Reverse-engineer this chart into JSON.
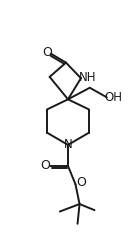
{
  "bg_color": "#ffffff",
  "line_color": "#1a1a1a",
  "line_width": 1.4,
  "font_size": 8.5,
  "figsize": [
    1.36,
    2.34
  ],
  "dpi": 100,
  "xlim": [
    0,
    10
  ],
  "ylim": [
    0,
    17
  ]
}
